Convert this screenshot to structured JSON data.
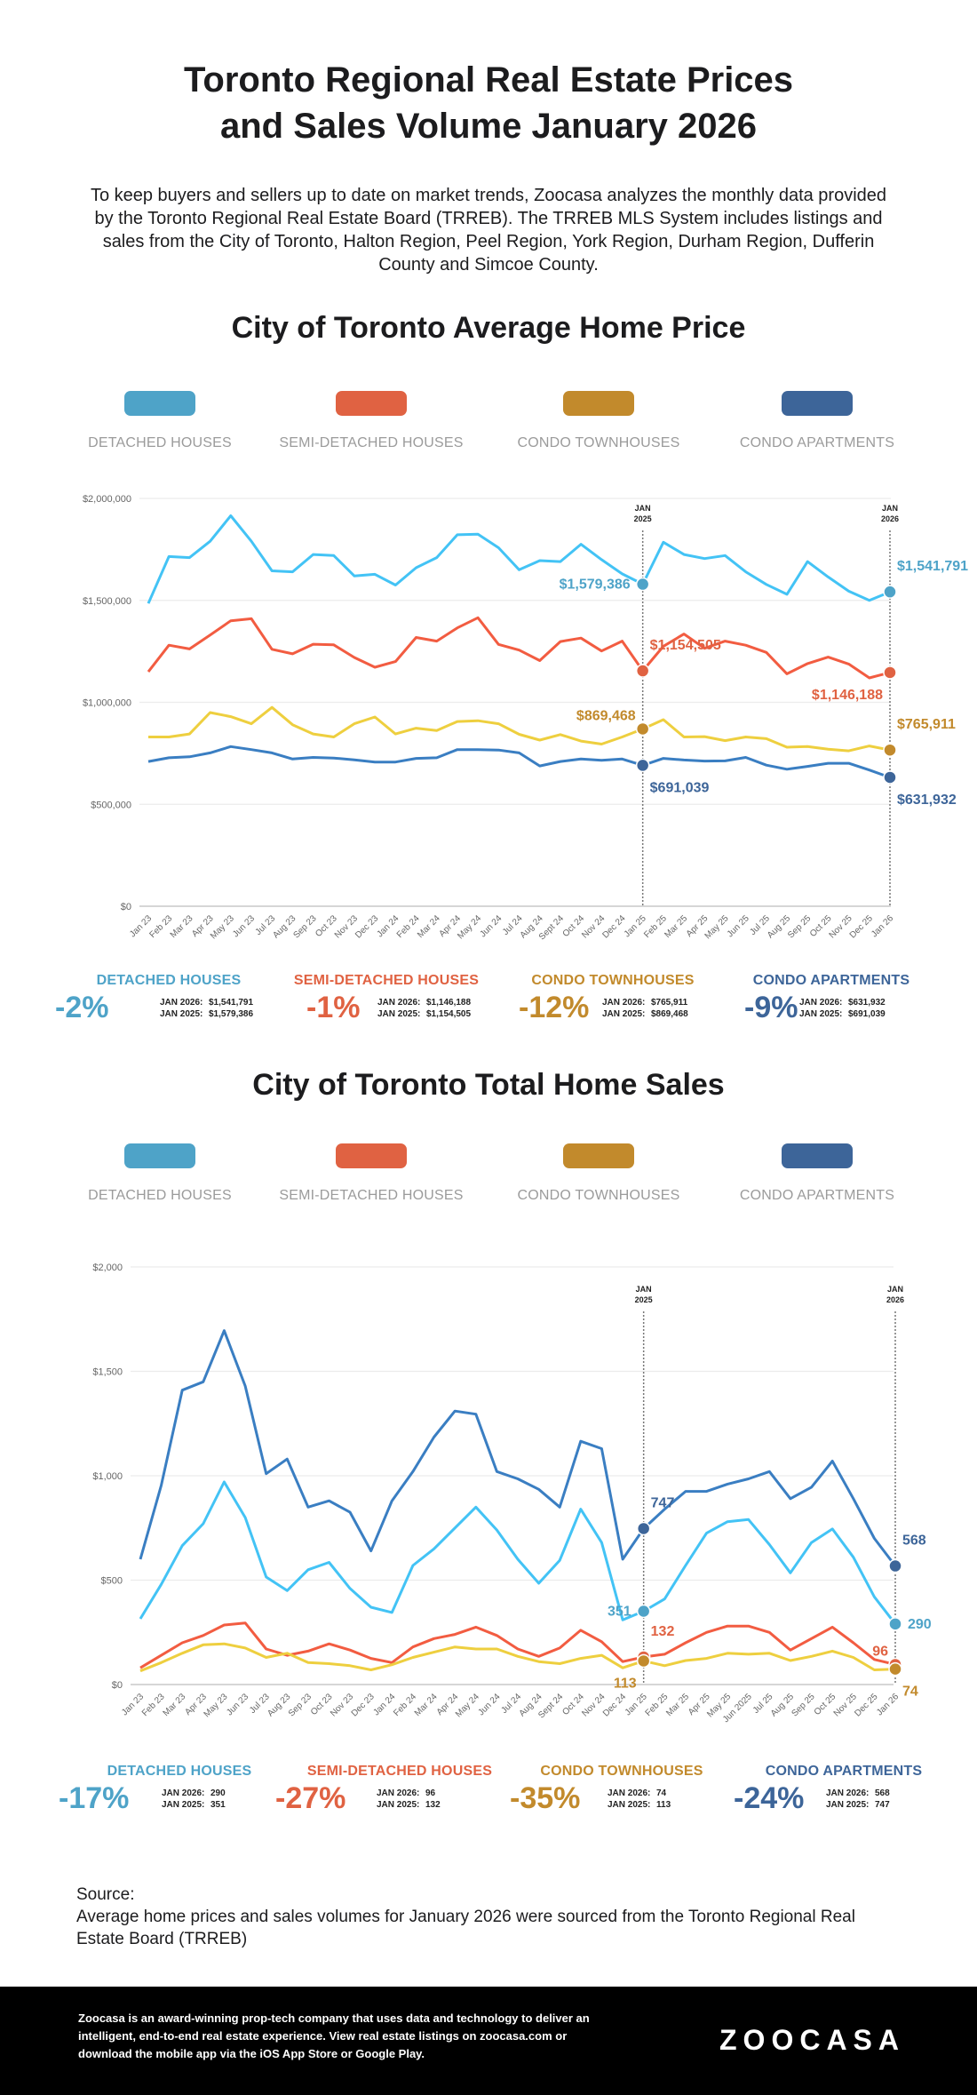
{
  "header": {
    "title_line1": "Toronto Regional Real Estate Prices",
    "title_line2": "and Sales Volume January 2026",
    "intro": "To keep buyers and sellers up to date on market trends, Zoocasa analyzes the monthly data provided by the Toronto Regional Real Estate Board (TRREB). The TRREB MLS System includes listings and sales from the City of Toronto, Halton Region, Peel Region, York Region, Durham Region, Dufferin County and Simcoe County."
  },
  "legend": [
    {
      "label": "DETACHED HOUSES",
      "color": "#4ea3c8"
    },
    {
      "label": "SEMI-DETACHED HOUSES",
      "color": "#e06242"
    },
    {
      "label": "CONDO TOWNHOUSES",
      "color": "#c28a2c"
    },
    {
      "label": "CONDO APARTMENTS",
      "color": "#3d6599"
    }
  ],
  "line_colors": [
    "#43c3f5",
    "#f25c41",
    "#eecf3f",
    "#3a7ec2"
  ],
  "price_section": {
    "title": "City of Toronto Average Home Price",
    "stats": [
      {
        "title": "DETACHED HOUSES",
        "pct": "-2%",
        "row1_label": "JAN 2026:",
        "row1_value": "$1,541,791",
        "row2_label": "JAN 2025:",
        "row2_value": "$1,579,386",
        "color": "#4ea3c8"
      },
      {
        "title": "SEMI-DETACHED HOUSES",
        "pct": "-1%",
        "row1_label": "JAN 2026:",
        "row1_value": "$1,146,188",
        "row2_label": "JAN 2025:",
        "row2_value": "$1,154,505",
        "color": "#e06242"
      },
      {
        "title": "CONDO TOWNHOUSES",
        "pct": "-12%",
        "row1_label": "JAN 2026:",
        "row1_value": "$765,911",
        "row2_label": "JAN 2025:",
        "row2_value": "$869,468",
        "color": "#c28a2c"
      },
      {
        "title": "CONDO APARTMENTS",
        "pct": "-9%",
        "row1_label": "JAN 2026:",
        "row1_value": "$631,932",
        "row2_label": "JAN 2025:",
        "row2_value": "$691,039",
        "color": "#3d6599"
      }
    ]
  },
  "sales_section": {
    "title": "City of Toronto Total Home Sales",
    "stats": [
      {
        "title": "DETACHED HOUSES",
        "pct": "-17%",
        "row1_label": "JAN 2026:",
        "row1_value": "290",
        "row2_label": "JAN 2025:",
        "row2_value": "351",
        "color": "#4ea3c8"
      },
      {
        "title": "SEMI-DETACHED HOUSES",
        "pct": "-27%",
        "row1_label": "JAN 2026:",
        "row1_value": "96",
        "row2_label": "JAN 2025:",
        "row2_value": "132",
        "color": "#e06242"
      },
      {
        "title": "CONDO TOWNHOUSES",
        "pct": "-35%",
        "row1_label": "JAN 2026:",
        "row1_value": "74",
        "row2_label": "JAN 2025:",
        "row2_value": "113",
        "color": "#c28a2c"
      },
      {
        "title": "CONDO APARTMENTS",
        "pct": "-24%",
        "row1_label": "JAN 2026:",
        "row1_value": "568",
        "row2_label": "JAN 2025:",
        "row2_value": "747",
        "color": "#3d6599"
      }
    ]
  },
  "chart_data": [
    {
      "type": "line",
      "title": "City of Toronto Average Home Price",
      "xlabel": "",
      "ylabel": "",
      "ylim": [
        0,
        2000000
      ],
      "yticks": [
        0,
        500000,
        1000000,
        1500000,
        2000000
      ],
      "ytick_labels": [
        "$0",
        "$500,000",
        "$1,000,000",
        "$1,500,000",
        "$2,000,000"
      ],
      "grid": true,
      "legend": "top",
      "categories": [
        "Jan 23",
        "Feb 23",
        "Mar 23",
        "Apr 23",
        "May 23",
        "Jun 23",
        "Jul 23",
        "Aug 23",
        "Sep 23",
        "Oct 23",
        "Nov 23",
        "Dec 23",
        "Jan 24",
        "Feb 24",
        "Mar 24",
        "Apr 24",
        "May 24",
        "Jun 24",
        "Jul 24",
        "Aug 24",
        "Sept 24",
        "Oct 24",
        "Nov 24",
        "Dec 24",
        "Jan 25",
        "Feb 25",
        "Mar 25",
        "Apr 25",
        "May 25",
        "Jun 25",
        "Jul 25",
        "Aug 25",
        "Sep 25",
        "Oct 25",
        "Nov 25",
        "Dec 25",
        "Jan 26"
      ],
      "markers": [
        {
          "index": 24,
          "label_line1": "JAN",
          "label_line2": "2025"
        },
        {
          "index": 36,
          "label_line1": "JAN",
          "label_line2": "2026"
        }
      ],
      "series": [
        {
          "name": "Detached Houses",
          "values": [
            1485000,
            1715000,
            1710000,
            1790000,
            1915000,
            1790000,
            1645000,
            1640000,
            1725000,
            1720000,
            1620000,
            1628000,
            1575000,
            1660000,
            1710000,
            1822000,
            1825000,
            1758000,
            1650000,
            1695000,
            1690000,
            1775000,
            1700000,
            1630000,
            1579386,
            1785000,
            1725000,
            1705000,
            1720000,
            1640000,
            1578000,
            1530000,
            1690000,
            1615000,
            1545000,
            1500000,
            1541791
          ]
        },
        {
          "name": "Semi-Detached Houses",
          "values": [
            1150000,
            1280000,
            1262000,
            1330000,
            1400000,
            1410000,
            1260000,
            1238000,
            1285000,
            1282000,
            1220000,
            1172000,
            1200000,
            1318000,
            1300000,
            1365000,
            1415000,
            1284000,
            1256000,
            1205000,
            1298000,
            1315000,
            1252000,
            1300000,
            1154505,
            1275000,
            1335000,
            1265000,
            1300000,
            1280000,
            1245000,
            1140000,
            1190000,
            1222000,
            1188000,
            1120000,
            1146188
          ]
        },
        {
          "name": "Condo Townhouses",
          "values": [
            830000,
            830000,
            845000,
            950000,
            930000,
            895000,
            975000,
            890000,
            845000,
            830000,
            895000,
            928000,
            845000,
            873000,
            862000,
            906000,
            910000,
            895000,
            843000,
            815000,
            842000,
            810000,
            795000,
            830000,
            869468,
            915000,
            830000,
            832000,
            812000,
            830000,
            822000,
            780000,
            783000,
            770000,
            762000,
            786000,
            765911
          ]
        },
        {
          "name": "Condo Apartments",
          "values": [
            710000,
            728000,
            733000,
            752000,
            783000,
            768000,
            752000,
            722000,
            730000,
            727000,
            718000,
            707000,
            707000,
            725000,
            728000,
            768000,
            768000,
            766000,
            752000,
            688000,
            710000,
            722000,
            716000,
            722000,
            691039,
            725000,
            717000,
            712000,
            713000,
            730000,
            692000,
            672000,
            686000,
            701000,
            701000,
            668000,
            631932
          ]
        }
      ],
      "annotations": [
        {
          "series": 0,
          "index": 24,
          "text": "$1,579,386",
          "side": "left"
        },
        {
          "series": 0,
          "index": 36,
          "text": "$1,541,791",
          "side": "right-above"
        },
        {
          "series": 1,
          "index": 24,
          "text": "$1,154,505",
          "side": "right-above"
        },
        {
          "series": 1,
          "index": 36,
          "text": "$1,146,188",
          "side": "left-below"
        },
        {
          "series": 2,
          "index": 24,
          "text": "$869,468",
          "side": "left-above"
        },
        {
          "series": 2,
          "index": 36,
          "text": "$765,911",
          "side": "right-above"
        },
        {
          "series": 3,
          "index": 24,
          "text": "$691,039",
          "side": "right-below"
        },
        {
          "series": 3,
          "index": 36,
          "text": "$631,932",
          "side": "right-below"
        }
      ]
    },
    {
      "type": "line",
      "title": "City of Toronto Total Home Sales",
      "xlabel": "",
      "ylabel": "",
      "ylim": [
        0,
        2000
      ],
      "yticks": [
        0,
        500,
        1000,
        1500,
        2000
      ],
      "ytick_labels": [
        "$0",
        "$500",
        "$1,000",
        "$1,500",
        "$2,000"
      ],
      "grid": true,
      "legend": "top",
      "categories": [
        "Jan 23",
        "Feb 23",
        "Mar 23",
        "Apr 23",
        "May 23",
        "Jun 23",
        "Jul 23",
        "Aug 23",
        "Sep 23",
        "Oct 23",
        "Nov 23",
        "Dec 23",
        "Jan 24",
        "Feb 24",
        "Mar 24",
        "Apr 24",
        "May 24",
        "Jun 24",
        "Jul 24",
        "Aug 24",
        "Sept 24",
        "Oct 24",
        "Nov 24",
        "Dec 24",
        "Jan 25",
        "Feb 25",
        "Mar 25",
        "Apr 25",
        "May 25",
        "Jun 2025",
        "Jul 25",
        "Aug 25",
        "Sep 25",
        "Oct 25",
        "Nov 25",
        "Dec 25",
        "Jan 26"
      ],
      "markers": [
        {
          "index": 24,
          "label_line1": "JAN",
          "label_line2": "2025"
        },
        {
          "index": 36,
          "label_line1": "JAN",
          "label_line2": "2026"
        }
      ],
      "series": [
        {
          "name": "Detached Houses",
          "values": [
            315,
            480,
            665,
            770,
            970,
            800,
            515,
            450,
            550,
            585,
            460,
            370,
            345,
            570,
            650,
            750,
            850,
            740,
            600,
            485,
            595,
            840,
            680,
            310,
            351,
            410,
            570,
            725,
            780,
            790,
            670,
            535,
            680,
            745,
            610,
            420,
            290
          ]
        },
        {
          "name": "Semi-Detached Houses",
          "values": [
            80,
            140,
            200,
            235,
            285,
            295,
            170,
            140,
            160,
            195,
            165,
            125,
            105,
            180,
            220,
            240,
            275,
            235,
            170,
            135,
            175,
            260,
            205,
            110,
            132,
            145,
            200,
            250,
            280,
            280,
            250,
            165,
            220,
            275,
            200,
            120,
            96
          ]
        },
        {
          "name": "Condo Townhouses",
          "values": [
            65,
            105,
            150,
            190,
            195,
            175,
            130,
            150,
            105,
            100,
            90,
            70,
            95,
            130,
            155,
            180,
            170,
            170,
            135,
            110,
            100,
            125,
            140,
            80,
            113,
            90,
            115,
            125,
            150,
            145,
            150,
            115,
            135,
            160,
            130,
            70,
            74
          ]
        },
        {
          "name": "Condo Apartments",
          "values": [
            600,
            955,
            1410,
            1450,
            1695,
            1430,
            1010,
            1080,
            850,
            880,
            825,
            640,
            880,
            1020,
            1185,
            1310,
            1295,
            1020,
            985,
            935,
            850,
            1165,
            1130,
            600,
            747,
            840,
            925,
            925,
            960,
            985,
            1020,
            890,
            945,
            1070,
            890,
            700,
            568
          ]
        }
      ],
      "annotations": [
        {
          "series": 0,
          "index": 24,
          "text": "351",
          "side": "left"
        },
        {
          "series": 0,
          "index": 36,
          "text": "290",
          "side": "right"
        },
        {
          "series": 1,
          "index": 24,
          "text": "132",
          "side": "right-above"
        },
        {
          "series": 1,
          "index": 36,
          "text": "96",
          "side": "left-above"
        },
        {
          "series": 2,
          "index": 24,
          "text": "113",
          "side": "left-below"
        },
        {
          "series": 2,
          "index": 36,
          "text": "74",
          "side": "right-below"
        },
        {
          "series": 3,
          "index": 24,
          "text": "747",
          "side": "right-above"
        },
        {
          "series": 3,
          "index": 36,
          "text": "568",
          "side": "right-above"
        }
      ]
    }
  ],
  "source": {
    "label": "Source:",
    "text": "Average home prices and sales volumes for January 2026 were sourced from the Toronto Regional Real Estate Board (TRREB)"
  },
  "footer": {
    "text": "Zoocasa is an award-winning prop-tech company that uses data and technology to deliver an intelligent, end-to-end real estate experience. View real estate listings on zoocasa.com or download the mobile app via the iOS App Store or Google Play.",
    "logo": "ZOOCASA"
  }
}
